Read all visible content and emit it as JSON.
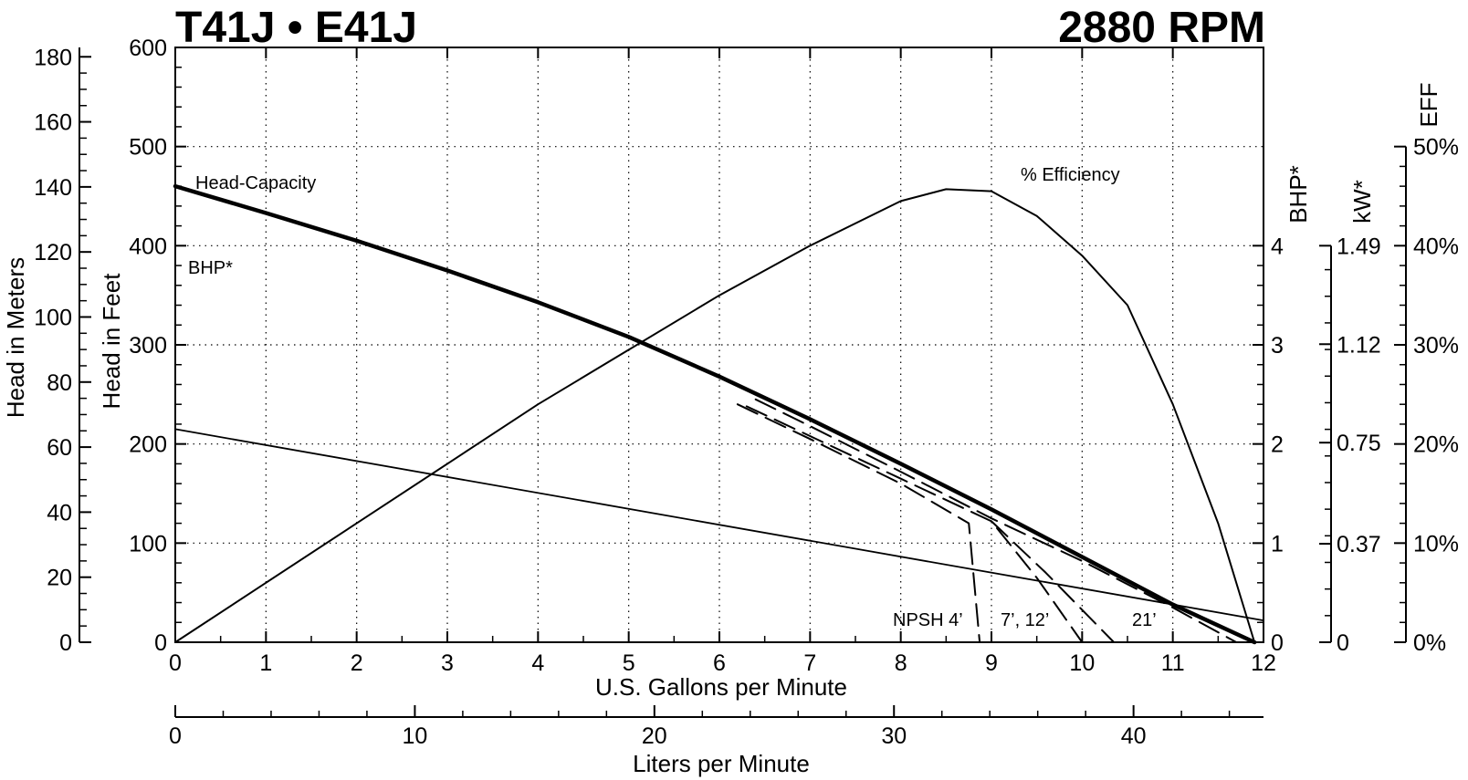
{
  "title_left": "T41J • E41J",
  "title_right": "2880 RPM",
  "chart_data": {
    "type": "line",
    "x_label": "U.S. Gallons per Minute",
    "x2_label": "Liters per Minute",
    "y_label": "Head in Feet",
    "y_meters_label": "Head in Meters",
    "y_bhp_label": "BHP*",
    "y_kw_label": "kW*",
    "y_eff_label": "EFF",
    "xlim": [
      0,
      12
    ],
    "ylim": [
      0,
      600
    ],
    "x_ticks": [
      "0",
      "1",
      "2",
      "3",
      "4",
      "5",
      "6",
      "7",
      "8",
      "9",
      "10",
      "11",
      "12"
    ],
    "y_ticks": [
      "0",
      "100",
      "200",
      "300",
      "400",
      "500",
      "600"
    ],
    "meters_ticks": [
      "0",
      "20",
      "40",
      "60",
      "80",
      "100",
      "120",
      "140",
      "160",
      "180"
    ],
    "lpm_ticks": [
      "0",
      "10",
      "20",
      "30",
      "40"
    ],
    "bhp_ticks": [
      "0",
      "1",
      "2",
      "3",
      "4"
    ],
    "kw_ticks": [
      "0",
      "0.37",
      "0.75",
      "1.12",
      "1.49"
    ],
    "eff_ticks": [
      "0%",
      "10%",
      "20%",
      "30%",
      "40%",
      "50%"
    ],
    "grid": true,
    "series": [
      {
        "name": "Head-Capacity",
        "unit": "feet",
        "x": [
          0,
          1,
          2,
          3,
          4,
          5,
          6,
          7,
          8,
          9,
          10,
          11,
          11.9
        ],
        "y": [
          460,
          433,
          405,
          375,
          343,
          308,
          268,
          225,
          180,
          134,
          86,
          38,
          0
        ]
      },
      {
        "name": "BHP*",
        "unit": "BHP",
        "x": [
          0,
          12
        ],
        "y": [
          2.15,
          0.22
        ]
      },
      {
        "name": "% Efficiency",
        "unit": "%",
        "x": [
          0,
          1,
          2,
          3,
          4,
          5,
          6,
          7,
          8,
          8.5,
          9,
          9.5,
          10,
          10.5,
          11,
          11.5,
          11.9
        ],
        "y": [
          0,
          6,
          12,
          18,
          24,
          29.5,
          35,
          40,
          44.5,
          45.7,
          45.5,
          43,
          39,
          34,
          24,
          12,
          0
        ]
      },
      {
        "name": "NPSH 4’",
        "unit": "feet",
        "x": [
          6.2,
          7,
          8,
          8.75,
          8.87
        ],
        "y": [
          240,
          205,
          160,
          120,
          0
        ]
      },
      {
        "name": "7’, 12’",
        "unit": "feet",
        "x": [
          6.3,
          7,
          8,
          9,
          9.5,
          10
        ],
        "y": [
          238,
          208,
          165,
          122,
          65,
          0
        ]
      },
      {
        "name": "7’, 12’",
        "unit": "feet",
        "x": [
          9,
          9.6,
          10.35
        ],
        "y": [
          122,
          70,
          0
        ]
      },
      {
        "name": "21’",
        "unit": "feet",
        "x": [
          6.4,
          7,
          8,
          9,
          10,
          11,
          11.7
        ],
        "y": [
          245,
          218,
          172,
          125,
          82,
          35,
          0
        ]
      }
    ],
    "annotations": [
      "Head-Capacity",
      "BHP*",
      "% Efficiency",
      "NPSH 4’",
      "7’, 12’",
      "21’"
    ]
  }
}
